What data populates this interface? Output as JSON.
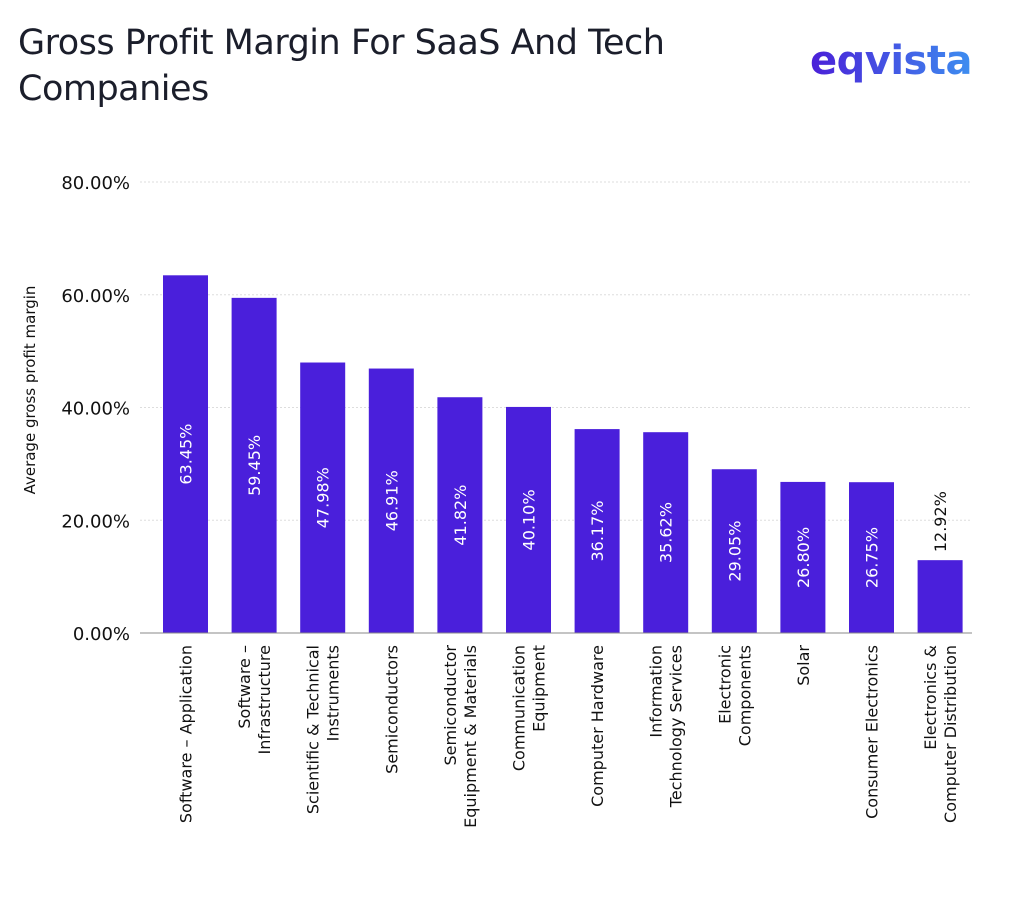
{
  "logo_text": "eqvista",
  "colors": {
    "bar": "#4a1fdb",
    "bar_label": "#ffffff",
    "text": "#111111",
    "grid": "#dddddd"
  },
  "chart_data": {
    "type": "bar",
    "title": "Gross Profit Margin For SaaS And Tech Companies",
    "xlabel": "",
    "ylabel": "Average gross profit margin",
    "ylim": [
      0,
      80
    ],
    "yticks": [
      "0.00%",
      "20.00%",
      "40.00%",
      "60.00%",
      "80.00%"
    ],
    "ytick_values": [
      0,
      20,
      40,
      60,
      80
    ],
    "grid": true,
    "categories": [
      [
        "Software – Application"
      ],
      [
        "Software –",
        "Infrastructure"
      ],
      [
        "Scientific & Technical",
        "Instruments"
      ],
      [
        "Semiconductors"
      ],
      [
        "Semiconductor",
        "Equipment & Materials"
      ],
      [
        "Communication",
        "Equipment"
      ],
      [
        "Computer Hardware"
      ],
      [
        "Information",
        "Technology Services"
      ],
      [
        "Electronic",
        "Components"
      ],
      [
        "Solar"
      ],
      [
        "Consumer Electronics"
      ],
      [
        "Electronics &",
        "Computer Distribution"
      ]
    ],
    "values": [
      63.45,
      59.45,
      47.98,
      46.91,
      41.82,
      40.1,
      36.17,
      35.62,
      29.05,
      26.8,
      26.75,
      12.92
    ],
    "data_labels": [
      "63.45%",
      "59.45%",
      "47.98%",
      "46.91%",
      "41.82%",
      "40.10%",
      "36.17%",
      "35.62%",
      "29.05%",
      "26.80%",
      "26.75%",
      "12.92%"
    ]
  }
}
